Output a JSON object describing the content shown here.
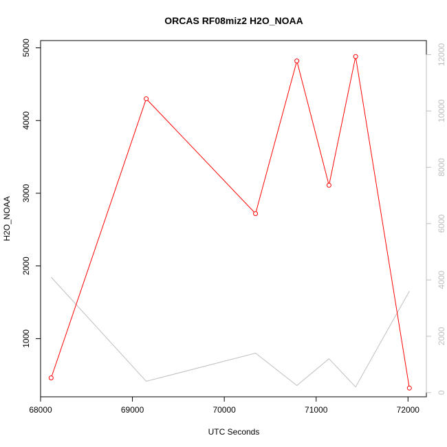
{
  "chart_data": {
    "type": "line",
    "title": "ORCAS RF08miz2 H2O_NOAA",
    "xlabel": "UTC Seconds",
    "ylabel": "H2O_NOAA",
    "xlim": [
      68000,
      72200
    ],
    "x_ticks": [
      68000,
      69000,
      70000,
      71000,
      72000
    ],
    "x_tick_labels": [
      "68000",
      "69000",
      "70000",
      "71000",
      "72000"
    ],
    "ylim": [
      200,
      5100
    ],
    "y_ticks": [
      1000,
      2000,
      3000,
      4000,
      5000
    ],
    "y_tick_labels": [
      "1000",
      "2000",
      "3000",
      "4000",
      "5000"
    ],
    "y2lim": [
      -150,
      12500
    ],
    "y2_ticks": [
      0,
      2000,
      4000,
      6000,
      8000,
      10000,
      12000
    ],
    "y2_tick_labels": [
      "0",
      "2000",
      "4000",
      "6000",
      "8000",
      "10000",
      "12000"
    ],
    "grid": false,
    "colors": {
      "primary": "#ff0000",
      "secondary": "#bebebe",
      "secondary_axis": "#bebebe",
      "axis": "#000000"
    },
    "series": [
      {
        "axis": "left",
        "markers": true,
        "x": [
          68115,
          69150,
          70340,
          70790,
          71140,
          71430,
          72015
        ],
        "values": [
          460,
          4300,
          2720,
          4820,
          3110,
          4880,
          320
        ]
      },
      {
        "axis": "right",
        "markers": false,
        "x": [
          68115,
          69150,
          70340,
          70790,
          71140,
          71430,
          72015
        ],
        "values": [
          4100,
          400,
          1400,
          250,
          1200,
          200,
          3600
        ]
      }
    ]
  }
}
